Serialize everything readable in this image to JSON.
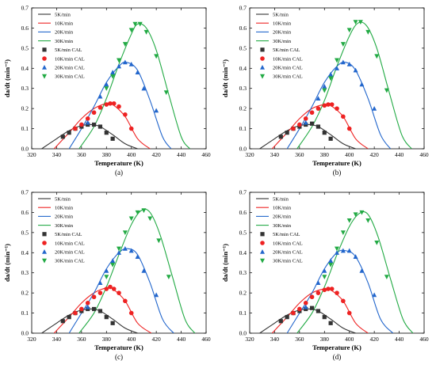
{
  "legend": [
    "5K/min",
    "10K/min",
    "20K/min",
    "30K/min",
    "5K/min CAL",
    "10K/min CAL",
    "20K/min CAL",
    "30K/min CAL"
  ],
  "colors": {
    "5K/min": "#333333",
    "10K/min": "#ee2222",
    "20K/min": "#2266cc",
    "30K/min": "#22aa44"
  },
  "chart_data": [
    {
      "type": "line",
      "panel_label": "(a)",
      "xlabel": "Temperature (K)",
      "ylabel": "da/dt (min⁻¹)",
      "xlim": [
        320,
        460
      ],
      "ylim": [
        0,
        0.7
      ],
      "xticks": [
        320,
        340,
        360,
        380,
        400,
        420,
        440,
        460
      ],
      "yticks": [
        0.0,
        0.1,
        0.2,
        0.3,
        0.4,
        0.5,
        0.6,
        0.7
      ],
      "series": [
        {
          "name": "5K/min",
          "kind": "line",
          "x": [
            328,
            340,
            350,
            360,
            368,
            375,
            385,
            395,
            405
          ],
          "y": [
            0.0,
            0.05,
            0.09,
            0.115,
            0.12,
            0.11,
            0.07,
            0.025,
            0.0
          ]
        },
        {
          "name": "10K/min",
          "kind": "line",
          "x": [
            338,
            350,
            360,
            370,
            380,
            385,
            395,
            405,
            415
          ],
          "y": [
            0.0,
            0.08,
            0.15,
            0.2,
            0.225,
            0.22,
            0.16,
            0.05,
            0.0
          ]
        },
        {
          "name": "20K/min",
          "kind": "line",
          "x": [
            350,
            360,
            370,
            380,
            390,
            396,
            405,
            415,
            425,
            432
          ],
          "y": [
            0.0,
            0.1,
            0.21,
            0.33,
            0.41,
            0.43,
            0.39,
            0.24,
            0.06,
            0.0
          ]
        },
        {
          "name": "30K/min",
          "kind": "line",
          "x": [
            358,
            370,
            380,
            390,
            400,
            405,
            412,
            420,
            430,
            440,
            447
          ],
          "y": [
            0.0,
            0.11,
            0.25,
            0.42,
            0.57,
            0.62,
            0.6,
            0.49,
            0.27,
            0.06,
            0.0
          ]
        },
        {
          "name": "5K/min CAL",
          "kind": "scatter",
          "marker": "square",
          "x": [
            345,
            350,
            355,
            360,
            365,
            370,
            375,
            380,
            385
          ],
          "y": [
            0.06,
            0.08,
            0.1,
            0.11,
            0.12,
            0.12,
            0.11,
            0.08,
            0.05
          ]
        },
        {
          "name": "10K/min CAL",
          "kind": "scatter",
          "marker": "circle",
          "x": [
            355,
            360,
            365,
            370,
            375,
            380,
            383,
            386,
            390,
            395,
            400
          ],
          "y": [
            0.1,
            0.12,
            0.15,
            0.18,
            0.205,
            0.22,
            0.225,
            0.225,
            0.21,
            0.17,
            0.1
          ]
        },
        {
          "name": "20K/min CAL",
          "kind": "scatter",
          "marker": "triangle-up",
          "x": [
            365,
            375,
            380,
            385,
            390,
            395,
            400,
            405,
            410,
            420
          ],
          "y": [
            0.13,
            0.26,
            0.32,
            0.38,
            0.41,
            0.43,
            0.42,
            0.38,
            0.3,
            0.19
          ]
        },
        {
          "name": "30K/min CAL",
          "kind": "scatter",
          "marker": "triangle-down",
          "x": [
            380,
            385,
            390,
            395,
            400,
            403,
            407,
            412,
            420,
            428
          ],
          "y": [
            0.3,
            0.36,
            0.44,
            0.52,
            0.59,
            0.62,
            0.62,
            0.58,
            0.46,
            0.28
          ]
        }
      ]
    },
    {
      "type": "line",
      "panel_label": "(b)",
      "xlabel": "Temperature (K)",
      "ylabel": "da/dt (min⁻¹)",
      "xlim": [
        320,
        460
      ],
      "ylim": [
        0,
        0.7
      ],
      "xticks": [
        320,
        340,
        360,
        380,
        400,
        420,
        440,
        460
      ],
      "yticks": [
        0.0,
        0.1,
        0.2,
        0.3,
        0.4,
        0.5,
        0.6,
        0.7
      ],
      "series": [
        {
          "name": "5K/min",
          "kind": "line",
          "x": [
            328,
            340,
            350,
            360,
            368,
            375,
            385,
            395,
            405
          ],
          "y": [
            0.0,
            0.05,
            0.09,
            0.115,
            0.12,
            0.11,
            0.07,
            0.025,
            0.0
          ]
        },
        {
          "name": "10K/min",
          "kind": "line",
          "x": [
            338,
            350,
            360,
            370,
            380,
            385,
            395,
            405,
            415
          ],
          "y": [
            0.0,
            0.08,
            0.15,
            0.2,
            0.22,
            0.215,
            0.16,
            0.05,
            0.0
          ]
        },
        {
          "name": "20K/min",
          "kind": "line",
          "x": [
            350,
            360,
            370,
            380,
            390,
            397,
            405,
            415,
            425,
            433
          ],
          "y": [
            0.0,
            0.1,
            0.21,
            0.33,
            0.41,
            0.43,
            0.39,
            0.25,
            0.07,
            0.0
          ]
        },
        {
          "name": "30K/min",
          "kind": "line",
          "x": [
            358,
            370,
            380,
            390,
            400,
            407,
            414,
            422,
            432,
            442,
            450
          ],
          "y": [
            0.0,
            0.11,
            0.24,
            0.41,
            0.56,
            0.625,
            0.61,
            0.5,
            0.28,
            0.07,
            0.0
          ]
        },
        {
          "name": "5K/min CAL",
          "kind": "scatter",
          "marker": "square",
          "x": [
            345,
            350,
            355,
            360,
            365,
            370,
            375,
            380,
            385
          ],
          "y": [
            0.06,
            0.08,
            0.1,
            0.11,
            0.12,
            0.125,
            0.11,
            0.08,
            0.05
          ]
        },
        {
          "name": "10K/min CAL",
          "kind": "scatter",
          "marker": "circle",
          "x": [
            355,
            360,
            365,
            370,
            375,
            380,
            383,
            386,
            390,
            395,
            400
          ],
          "y": [
            0.1,
            0.12,
            0.15,
            0.18,
            0.2,
            0.215,
            0.22,
            0.22,
            0.2,
            0.16,
            0.1
          ]
        },
        {
          "name": "20K/min CAL",
          "kind": "scatter",
          "marker": "triangle-up",
          "x": [
            365,
            375,
            380,
            385,
            390,
            395,
            400,
            405,
            410,
            420
          ],
          "y": [
            0.13,
            0.25,
            0.31,
            0.37,
            0.4,
            0.43,
            0.42,
            0.39,
            0.32,
            0.2
          ]
        },
        {
          "name": "30K/min CAL",
          "kind": "scatter",
          "marker": "triangle-down",
          "x": [
            380,
            385,
            390,
            395,
            400,
            405,
            409,
            415,
            422,
            430
          ],
          "y": [
            0.29,
            0.35,
            0.44,
            0.52,
            0.59,
            0.63,
            0.63,
            0.58,
            0.46,
            0.29
          ]
        }
      ]
    },
    {
      "type": "line",
      "panel_label": "(c)",
      "xlabel": "Temperature (K)",
      "ylabel": "da/dt (min⁻¹)",
      "xlim": [
        320,
        460
      ],
      "ylim": [
        0,
        0.7
      ],
      "xticks": [
        320,
        340,
        360,
        380,
        400,
        420,
        440,
        460
      ],
      "yticks": [
        0.0,
        0.1,
        0.2,
        0.3,
        0.4,
        0.5,
        0.6,
        0.7
      ],
      "series": [
        {
          "name": "5K/min",
          "kind": "line",
          "x": [
            328,
            340,
            350,
            360,
            368,
            375,
            385,
            395,
            405
          ],
          "y": [
            0.0,
            0.05,
            0.09,
            0.115,
            0.12,
            0.11,
            0.07,
            0.025,
            0.0
          ]
        },
        {
          "name": "10K/min",
          "kind": "line",
          "x": [
            338,
            350,
            360,
            370,
            380,
            385,
            395,
            405,
            416
          ],
          "y": [
            0.0,
            0.08,
            0.15,
            0.2,
            0.225,
            0.22,
            0.16,
            0.05,
            0.0
          ]
        },
        {
          "name": "20K/min",
          "kind": "line",
          "x": [
            350,
            360,
            370,
            380,
            390,
            397,
            405,
            415,
            425,
            434
          ],
          "y": [
            0.0,
            0.1,
            0.2,
            0.32,
            0.4,
            0.42,
            0.39,
            0.25,
            0.07,
            0.0
          ]
        },
        {
          "name": "30K/min",
          "kind": "line",
          "x": [
            358,
            370,
            380,
            390,
            400,
            408,
            415,
            423,
            433,
            443,
            451
          ],
          "y": [
            0.0,
            0.1,
            0.23,
            0.39,
            0.54,
            0.61,
            0.6,
            0.49,
            0.28,
            0.07,
            0.0
          ]
        },
        {
          "name": "5K/min CAL",
          "kind": "scatter",
          "marker": "square",
          "x": [
            345,
            350,
            355,
            360,
            365,
            370,
            375,
            380,
            385
          ],
          "y": [
            0.06,
            0.08,
            0.1,
            0.11,
            0.12,
            0.12,
            0.11,
            0.08,
            0.05
          ]
        },
        {
          "name": "10K/min CAL",
          "kind": "scatter",
          "marker": "circle",
          "x": [
            355,
            360,
            365,
            370,
            375,
            380,
            383,
            386,
            390,
            395,
            400
          ],
          "y": [
            0.1,
            0.12,
            0.15,
            0.18,
            0.2,
            0.22,
            0.23,
            0.22,
            0.2,
            0.16,
            0.1
          ]
        },
        {
          "name": "20K/min CAL",
          "kind": "scatter",
          "marker": "triangle-up",
          "x": [
            365,
            375,
            380,
            385,
            390,
            395,
            400,
            405,
            410,
            420
          ],
          "y": [
            0.13,
            0.25,
            0.31,
            0.36,
            0.4,
            0.42,
            0.41,
            0.38,
            0.31,
            0.19
          ]
        },
        {
          "name": "30K/min CAL",
          "kind": "scatter",
          "marker": "triangle-down",
          "x": [
            380,
            385,
            390,
            395,
            400,
            405,
            410,
            415,
            422,
            430
          ],
          "y": [
            0.28,
            0.34,
            0.42,
            0.5,
            0.57,
            0.6,
            0.61,
            0.57,
            0.46,
            0.28
          ]
        }
      ]
    },
    {
      "type": "line",
      "panel_label": "(d)",
      "xlabel": "Temperature (K)",
      "ylabel": "da/dt (min⁻¹)",
      "xlim": [
        320,
        460
      ],
      "ylim": [
        0,
        0.7
      ],
      "xticks": [
        320,
        340,
        360,
        380,
        400,
        420,
        440,
        460
      ],
      "yticks": [
        0.0,
        0.1,
        0.2,
        0.3,
        0.4,
        0.5,
        0.6,
        0.7
      ],
      "series": [
        {
          "name": "5K/min",
          "kind": "line",
          "x": [
            328,
            340,
            350,
            360,
            368,
            375,
            385,
            395,
            405
          ],
          "y": [
            0.0,
            0.05,
            0.09,
            0.115,
            0.12,
            0.11,
            0.07,
            0.025,
            0.0
          ]
        },
        {
          "name": "10K/min",
          "kind": "line",
          "x": [
            338,
            350,
            360,
            370,
            380,
            385,
            395,
            405,
            415
          ],
          "y": [
            0.0,
            0.08,
            0.15,
            0.2,
            0.22,
            0.215,
            0.16,
            0.05,
            0.0
          ]
        },
        {
          "name": "20K/min",
          "kind": "line",
          "x": [
            350,
            360,
            370,
            380,
            390,
            397,
            405,
            415,
            425,
            435
          ],
          "y": [
            0.0,
            0.1,
            0.2,
            0.32,
            0.4,
            0.41,
            0.38,
            0.25,
            0.07,
            0.0
          ]
        },
        {
          "name": "30K/min",
          "kind": "line",
          "x": [
            358,
            370,
            380,
            390,
            400,
            408,
            415,
            423,
            433,
            443,
            451
          ],
          "y": [
            0.0,
            0.1,
            0.23,
            0.39,
            0.53,
            0.595,
            0.59,
            0.48,
            0.27,
            0.07,
            0.0
          ]
        },
        {
          "name": "5K/min CAL",
          "kind": "scatter",
          "marker": "square",
          "x": [
            345,
            350,
            355,
            360,
            365,
            370,
            375,
            380,
            385
          ],
          "y": [
            0.06,
            0.08,
            0.1,
            0.11,
            0.12,
            0.125,
            0.11,
            0.08,
            0.05
          ]
        },
        {
          "name": "10K/min CAL",
          "kind": "scatter",
          "marker": "circle",
          "x": [
            355,
            360,
            365,
            370,
            375,
            380,
            383,
            386,
            390,
            395,
            400
          ],
          "y": [
            0.1,
            0.12,
            0.15,
            0.18,
            0.2,
            0.215,
            0.22,
            0.22,
            0.2,
            0.16,
            0.1
          ]
        },
        {
          "name": "20K/min CAL",
          "kind": "scatter",
          "marker": "triangle-up",
          "x": [
            365,
            375,
            380,
            385,
            390,
            395,
            400,
            405,
            410,
            420
          ],
          "y": [
            0.13,
            0.25,
            0.31,
            0.36,
            0.4,
            0.41,
            0.41,
            0.38,
            0.31,
            0.19
          ]
        },
        {
          "name": "30K/min CAL",
          "kind": "scatter",
          "marker": "triangle-down",
          "x": [
            380,
            385,
            390,
            395,
            400,
            405,
            410,
            415,
            422,
            430
          ],
          "y": [
            0.28,
            0.34,
            0.42,
            0.5,
            0.56,
            0.59,
            0.6,
            0.56,
            0.45,
            0.28
          ]
        }
      ]
    }
  ]
}
